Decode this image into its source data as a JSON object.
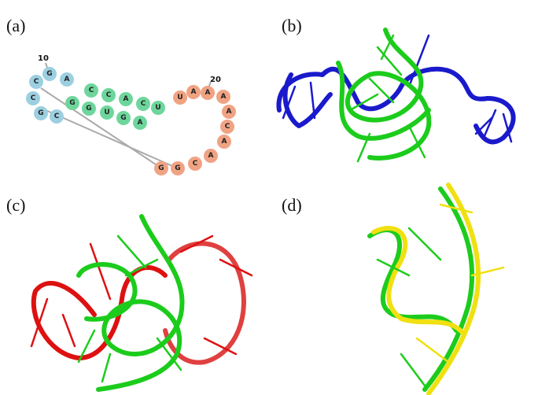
{
  "panels": [
    {
      "label": "(a)"
    },
    {
      "label": "(b)"
    },
    {
      "label": "(c)"
    },
    {
      "label": "(d)"
    }
  ],
  "secondary_structure": {
    "position_labels": [
      "10",
      "20"
    ],
    "nodes": [
      {
        "label": "C"
      },
      {
        "label": "G"
      },
      {
        "label": "A"
      },
      {
        "label": "C"
      },
      {
        "label": "G"
      },
      {
        "label": "C"
      },
      {
        "label": "C"
      },
      {
        "label": "C"
      },
      {
        "label": "A"
      },
      {
        "label": "C"
      },
      {
        "label": "U"
      },
      {
        "label": "G"
      },
      {
        "label": "G"
      },
      {
        "label": "U"
      },
      {
        "label": "G"
      },
      {
        "label": "A"
      },
      {
        "label": "U"
      },
      {
        "label": "A"
      },
      {
        "label": "A"
      },
      {
        "label": "A"
      },
      {
        "label": "A"
      },
      {
        "label": "C"
      },
      {
        "label": "A"
      },
      {
        "label": "A"
      },
      {
        "label": "C"
      },
      {
        "label": "G"
      },
      {
        "label": "G"
      }
    ]
  }
}
